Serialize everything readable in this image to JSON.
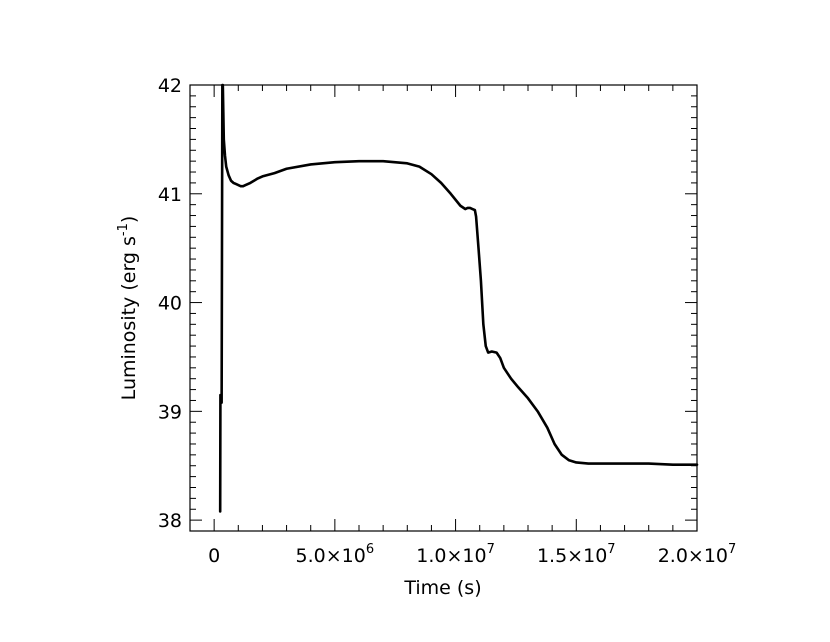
{
  "chart_data": {
    "type": "line",
    "title": "",
    "xlabel": "Time (s)",
    "ylabel_main": "Luminosity (erg s",
    "ylabel_sup": "-1",
    "ylabel_close": ")",
    "xlim": [
      -1000000,
      20000000
    ],
    "ylim": [
      37.9,
      42.0
    ],
    "x_ticks": [
      {
        "value": 0,
        "mant": "0",
        "exp": ""
      },
      {
        "value": 5000000,
        "mant": "5.0×10",
        "exp": "6"
      },
      {
        "value": 10000000,
        "mant": "1.0×10",
        "exp": "7"
      },
      {
        "value": 15000000,
        "mant": "1.5×10",
        "exp": "7"
      },
      {
        "value": 20000000,
        "mant": "2.0×10",
        "exp": "7"
      }
    ],
    "y_ticks": [
      {
        "value": 38,
        "label": "38"
      },
      {
        "value": 39,
        "label": "39"
      },
      {
        "value": 40,
        "label": "40"
      },
      {
        "value": 41,
        "label": "41"
      },
      {
        "value": 42,
        "label": "42"
      }
    ],
    "grid": false,
    "legend": "none",
    "line_color": "#000000",
    "series": [
      {
        "x": [
          250000,
          260000,
          300000,
          310000,
          340000,
          360000,
          380000,
          400000,
          450000,
          500000,
          600000,
          700000,
          800000,
          900000,
          1000000,
          1100000,
          1200000,
          1300000,
          1500000,
          1800000,
          2000000,
          2500000,
          3000000,
          4000000,
          5000000,
          6000000,
          6500000,
          7000000,
          8000000,
          8500000,
          9000000,
          9400000,
          9800000,
          10200000,
          10400000,
          10500000,
          10600000,
          10700000,
          10800000,
          10850000,
          10950000,
          11050000,
          11150000,
          11250000,
          11350000,
          11500000,
          11700000,
          11850000,
          12000000,
          12300000,
          12600000,
          13000000,
          13400000,
          13800000,
          14100000,
          14400000,
          14700000,
          15000000,
          15500000,
          16000000,
          17000000,
          18000000,
          19000000,
          20000000
        ],
        "y": [
          38.08,
          39.15,
          39.15,
          39.08,
          42.0,
          42.0,
          41.75,
          41.5,
          41.35,
          41.25,
          41.17,
          41.12,
          41.1,
          41.09,
          41.08,
          41.07,
          41.07,
          41.08,
          41.1,
          41.14,
          41.16,
          41.19,
          41.23,
          41.27,
          41.29,
          41.3,
          41.3,
          41.3,
          41.28,
          41.25,
          41.18,
          41.1,
          41.0,
          40.89,
          40.86,
          40.87,
          40.87,
          40.86,
          40.85,
          40.79,
          40.5,
          40.2,
          39.8,
          39.6,
          39.54,
          39.55,
          39.54,
          39.49,
          39.4,
          39.3,
          39.22,
          39.12,
          39.0,
          38.85,
          38.7,
          38.6,
          38.55,
          38.53,
          38.52,
          38.52,
          38.52,
          38.52,
          38.51,
          38.51
        ]
      }
    ]
  }
}
